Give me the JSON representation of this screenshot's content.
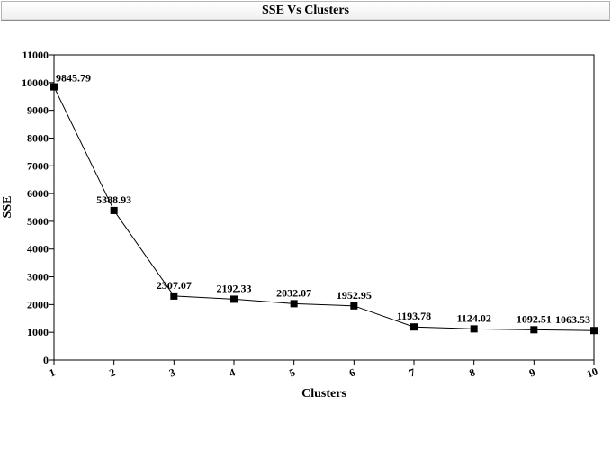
{
  "chart_data": {
    "type": "line",
    "title": "SSE Vs Clusters",
    "xlabel": "Clusters",
    "ylabel": "SSE",
    "x": [
      1,
      2,
      3,
      4,
      5,
      6,
      7,
      8,
      9,
      10
    ],
    "values": [
      9845.79,
      5388.93,
      2307.07,
      2192.33,
      2032.07,
      1952.95,
      1193.78,
      1124.02,
      1092.51,
      1063.53
    ],
    "data_labels": [
      "9845.79",
      "5388.93",
      "2307.07",
      "2192.33",
      "2032.07",
      "1952.95",
      "1193.78",
      "1124.02",
      "1092.51",
      "1063.53"
    ],
    "ylim": [
      0,
      11000
    ],
    "yticks": [
      0,
      1000,
      2000,
      3000,
      4000,
      5000,
      6000,
      7000,
      8000,
      9000,
      10000,
      11000
    ],
    "xticks": [
      "1",
      "2",
      "3",
      "4",
      "5",
      "6",
      "7",
      "8",
      "9",
      "10"
    ],
    "grid": false,
    "marker": "square",
    "color": "#000000"
  }
}
